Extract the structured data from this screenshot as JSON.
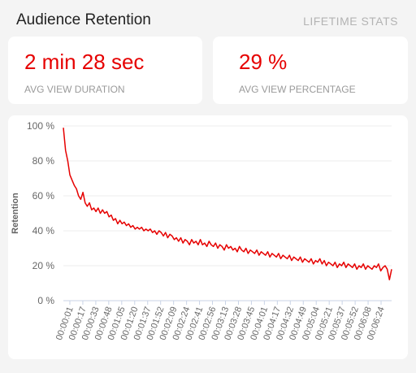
{
  "header": {
    "title": "Audience Retention",
    "subtitle": "LIFETIME STATS"
  },
  "stats": [
    {
      "value": "2 min 28 sec",
      "label": "AVG VIEW DURATION"
    },
    {
      "value": "29 %",
      "label": "AVG VIEW PERCENTAGE"
    }
  ],
  "colors": {
    "series": "#e60000",
    "accent_text": "#e60000"
  },
  "chart_data": {
    "type": "line",
    "title": "",
    "xlabel": "",
    "ylabel": "Retention",
    "ylim": [
      0,
      100
    ],
    "yticks": [
      0,
      20,
      40,
      60,
      80,
      100
    ],
    "ytick_labels": [
      "0 %",
      "20 %",
      "40 %",
      "60 %",
      "80 %",
      "100 %"
    ],
    "xtick_labels": [
      "00:00:01",
      "00:00:17",
      "00:00:33",
      "00:00:48",
      "00:01:05",
      "00:01:20",
      "00:01:37",
      "00:01:52",
      "00:02:09",
      "00:02:24",
      "00:02:41",
      "00:02:56",
      "00:03:13",
      "00:03:28",
      "00:03:45",
      "00:04:01",
      "00:04:17",
      "00:04:32",
      "00:04:49",
      "00:05:04",
      "00:05:21",
      "00:05:37",
      "00:05:52",
      "00:06:08",
      "00:06:24"
    ],
    "grid": true,
    "series": [
      {
        "values": [
          99,
          86,
          80,
          72,
          69,
          66,
          64,
          60,
          58,
          62,
          56,
          54,
          56,
          52,
          53,
          51,
          53,
          50,
          52,
          50,
          51,
          48,
          49,
          46,
          47,
          44,
          46,
          44,
          45,
          43,
          44,
          42,
          43,
          41,
          42,
          41,
          42,
          40,
          41,
          40,
          41,
          39,
          40,
          38,
          40,
          39,
          37,
          39,
          36,
          38,
          37,
          35,
          36,
          34,
          36,
          33,
          35,
          34,
          32,
          35,
          33,
          34,
          32,
          35,
          32,
          33,
          31,
          34,
          32,
          31,
          33,
          30,
          32,
          31,
          29,
          32,
          30,
          31,
          29,
          30,
          28,
          31,
          29,
          28,
          30,
          27,
          29,
          28,
          27,
          29,
          26,
          28,
          27,
          26,
          28,
          25,
          27,
          26,
          25,
          27,
          24,
          26,
          25,
          24,
          26,
          23,
          25,
          24,
          23,
          25,
          22,
          24,
          23,
          22,
          24,
          21,
          23,
          22,
          24,
          21,
          23,
          20,
          22,
          21,
          20,
          22,
          19,
          21,
          20,
          22,
          19,
          21,
          20,
          19,
          21,
          18,
          20,
          19,
          21,
          18,
          20,
          19,
          18,
          20,
          19,
          21,
          17,
          19,
          20,
          18,
          12,
          18
        ]
      }
    ]
  }
}
